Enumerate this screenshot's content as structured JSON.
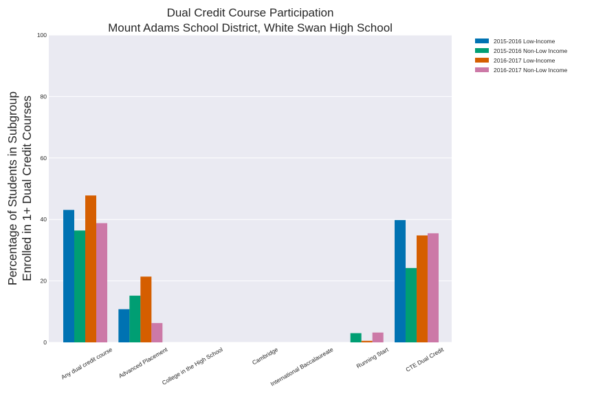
{
  "chart_data": {
    "type": "bar",
    "title_lines": [
      "Dual Credit Course Participation",
      "Mount Adams School District, White Swan High School"
    ],
    "xlabel": "",
    "ylabel_lines": [
      "Percentage of Students in Subgroup",
      "Enrolled in 1+ Dual Credit Courses"
    ],
    "ylim": [
      0,
      100
    ],
    "yticks": [
      "0",
      "20",
      "40",
      "60",
      "80",
      "100"
    ],
    "grid": true,
    "legend_position": "outside-right",
    "categories": [
      "Any dual credit course",
      "Advanced Placement",
      "College in the High School",
      "Cambridge",
      "International Baccalaureate",
      "Running Start",
      "CTE Dual Credit"
    ],
    "series": [
      {
        "name": "2015-2016 Low-Income",
        "color": "#0072B2",
        "values": [
          43.1,
          10.8,
          0,
          0,
          0,
          0,
          39.8
        ]
      },
      {
        "name": "2015-2016 Non-Low Income",
        "color": "#009E73",
        "values": [
          36.4,
          15.2,
          0,
          0,
          0,
          3.0,
          24.2
        ]
      },
      {
        "name": "2016-2017 Low-Income",
        "color": "#D55E00",
        "values": [
          47.8,
          21.4,
          0,
          0,
          0,
          0.5,
          34.8
        ]
      },
      {
        "name": "2016-2017 Non-Low Income",
        "color": "#CC79A7",
        "values": [
          38.8,
          6.3,
          0,
          0,
          0,
          3.2,
          35.5
        ]
      }
    ]
  }
}
